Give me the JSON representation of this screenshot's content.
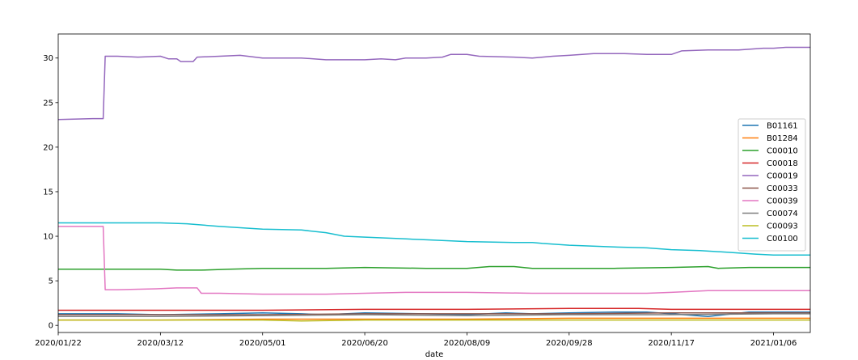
{
  "chart_data": {
    "type": "line",
    "title": "",
    "xlabel": "date",
    "ylabel": "",
    "ylim": [
      -0.8,
      32.7
    ],
    "yticks": [
      0,
      5,
      10,
      15,
      20,
      25,
      30
    ],
    "xlim": [
      "2020-01-22",
      "2021-01-24"
    ],
    "xticks": [
      "2020/01/22",
      "2020/03/12",
      "2020/05/01",
      "2020/06/20",
      "2020/08/09",
      "2020/09/28",
      "2020/11/17",
      "2021/01/06"
    ],
    "grid": false,
    "legend_position": "center-right",
    "series": [
      {
        "name": "B01161",
        "color": "#1f77b4",
        "points": [
          [
            "2020-01-22",
            1.3
          ],
          [
            "2020-02-20",
            1.3
          ],
          [
            "2020-03-12",
            1.2
          ],
          [
            "2020-04-10",
            1.3
          ],
          [
            "2020-05-01",
            1.4
          ],
          [
            "2020-05-20",
            1.3
          ],
          [
            "2020-06-01",
            1.2
          ],
          [
            "2020-06-20",
            1.4
          ],
          [
            "2020-07-20",
            1.3
          ],
          [
            "2020-08-09",
            1.2
          ],
          [
            "2020-08-28",
            1.4
          ],
          [
            "2020-09-10",
            1.3
          ],
          [
            "2020-09-28",
            1.4
          ],
          [
            "2020-10-20",
            1.5
          ],
          [
            "2020-11-05",
            1.5
          ],
          [
            "2020-11-17",
            1.3
          ],
          [
            "2020-12-05",
            1.0
          ],
          [
            "2020-12-25",
            1.5
          ],
          [
            "2021-01-06",
            1.5
          ],
          [
            "2021-01-24",
            1.5
          ]
        ]
      },
      {
        "name": "B01284",
        "color": "#ff7f0e",
        "points": [
          [
            "2020-01-22",
            0.6
          ],
          [
            "2020-03-12",
            0.6
          ],
          [
            "2020-05-01",
            0.7
          ],
          [
            "2020-06-20",
            0.7
          ],
          [
            "2020-08-09",
            0.7
          ],
          [
            "2020-09-28",
            0.8
          ],
          [
            "2020-11-17",
            0.8
          ],
          [
            "2021-01-06",
            0.8
          ],
          [
            "2021-01-24",
            0.8
          ]
        ]
      },
      {
        "name": "C00010",
        "color": "#2ca02c",
        "points": [
          [
            "2020-01-22",
            6.3
          ],
          [
            "2020-02-20",
            6.3
          ],
          [
            "2020-03-12",
            6.3
          ],
          [
            "2020-03-20",
            6.2
          ],
          [
            "2020-04-01",
            6.2
          ],
          [
            "2020-04-15",
            6.3
          ],
          [
            "2020-05-01",
            6.4
          ],
          [
            "2020-05-20",
            6.4
          ],
          [
            "2020-06-01",
            6.4
          ],
          [
            "2020-06-20",
            6.5
          ],
          [
            "2020-07-20",
            6.4
          ],
          [
            "2020-08-09",
            6.4
          ],
          [
            "2020-08-20",
            6.6
          ],
          [
            "2020-09-01",
            6.6
          ],
          [
            "2020-09-10",
            6.4
          ],
          [
            "2020-09-28",
            6.4
          ],
          [
            "2020-10-20",
            6.4
          ],
          [
            "2020-11-17",
            6.5
          ],
          [
            "2020-12-05",
            6.6
          ],
          [
            "2020-12-10",
            6.4
          ],
          [
            "2020-12-25",
            6.5
          ],
          [
            "2021-01-06",
            6.5
          ],
          [
            "2021-01-24",
            6.5
          ]
        ]
      },
      {
        "name": "C00018",
        "color": "#d62728",
        "points": [
          [
            "2020-01-22",
            1.7
          ],
          [
            "2020-03-12",
            1.7
          ],
          [
            "2020-05-01",
            1.7
          ],
          [
            "2020-06-20",
            1.8
          ],
          [
            "2020-08-09",
            1.8
          ],
          [
            "2020-09-28",
            1.9
          ],
          [
            "2020-11-01",
            1.9
          ],
          [
            "2020-11-17",
            1.8
          ],
          [
            "2021-01-06",
            1.8
          ],
          [
            "2021-01-24",
            1.8
          ]
        ]
      },
      {
        "name": "C00019",
        "color": "#9467bd",
        "points": [
          [
            "2020-01-22",
            23.1
          ],
          [
            "2020-02-08",
            23.2
          ],
          [
            "2020-02-13",
            23.2
          ],
          [
            "2020-02-14",
            30.2
          ],
          [
            "2020-02-20",
            30.2
          ],
          [
            "2020-03-01",
            30.1
          ],
          [
            "2020-03-12",
            30.2
          ],
          [
            "2020-03-16",
            29.9
          ],
          [
            "2020-03-20",
            29.9
          ],
          [
            "2020-03-22",
            29.6
          ],
          [
            "2020-03-28",
            29.6
          ],
          [
            "2020-03-30",
            30.1
          ],
          [
            "2020-04-10",
            30.2
          ],
          [
            "2020-04-20",
            30.3
          ],
          [
            "2020-05-01",
            30.0
          ],
          [
            "2020-05-20",
            30.0
          ],
          [
            "2020-06-01",
            29.8
          ],
          [
            "2020-06-20",
            29.8
          ],
          [
            "2020-06-28",
            29.9
          ],
          [
            "2020-07-05",
            29.8
          ],
          [
            "2020-07-10",
            30.0
          ],
          [
            "2020-07-20",
            30.0
          ],
          [
            "2020-07-28",
            30.1
          ],
          [
            "2020-08-01",
            30.4
          ],
          [
            "2020-08-09",
            30.4
          ],
          [
            "2020-08-15",
            30.2
          ],
          [
            "2020-09-01",
            30.1
          ],
          [
            "2020-09-10",
            30.0
          ],
          [
            "2020-09-20",
            30.2
          ],
          [
            "2020-09-28",
            30.3
          ],
          [
            "2020-10-10",
            30.5
          ],
          [
            "2020-10-25",
            30.5
          ],
          [
            "2020-11-05",
            30.4
          ],
          [
            "2020-11-10",
            30.4
          ],
          [
            "2020-11-17",
            30.4
          ],
          [
            "2020-11-22",
            30.8
          ],
          [
            "2020-12-05",
            30.9
          ],
          [
            "2020-12-20",
            30.9
          ],
          [
            "2021-01-01",
            31.1
          ],
          [
            "2021-01-06",
            31.1
          ],
          [
            "2021-01-12",
            31.2
          ],
          [
            "2021-01-24",
            31.2
          ]
        ]
      },
      {
        "name": "C00033",
        "color": "#8c564b",
        "points": [
          [
            "2020-01-22",
            1.2
          ],
          [
            "2020-03-12",
            1.2
          ],
          [
            "2020-05-01",
            1.2
          ],
          [
            "2020-06-20",
            1.3
          ],
          [
            "2020-08-09",
            1.3
          ],
          [
            "2020-09-28",
            1.3
          ],
          [
            "2020-11-17",
            1.4
          ],
          [
            "2021-01-06",
            1.4
          ],
          [
            "2021-01-24",
            1.4
          ]
        ]
      },
      {
        "name": "C00039",
        "color": "#e377c2",
        "points": [
          [
            "2020-01-22",
            11.1
          ],
          [
            "2020-02-08",
            11.1
          ],
          [
            "2020-02-13",
            11.1
          ],
          [
            "2020-02-14",
            4.0
          ],
          [
            "2020-02-20",
            4.0
          ],
          [
            "2020-03-10",
            4.1
          ],
          [
            "2020-03-20",
            4.2
          ],
          [
            "2020-03-30",
            4.2
          ],
          [
            "2020-04-01",
            3.6
          ],
          [
            "2020-04-10",
            3.6
          ],
          [
            "2020-05-01",
            3.5
          ],
          [
            "2020-05-20",
            3.5
          ],
          [
            "2020-06-01",
            3.5
          ],
          [
            "2020-06-20",
            3.6
          ],
          [
            "2020-07-10",
            3.7
          ],
          [
            "2020-07-20",
            3.7
          ],
          [
            "2020-08-09",
            3.7
          ],
          [
            "2020-09-10",
            3.6
          ],
          [
            "2020-09-28",
            3.6
          ],
          [
            "2020-10-20",
            3.6
          ],
          [
            "2020-11-05",
            3.6
          ],
          [
            "2020-11-17",
            3.7
          ],
          [
            "2020-12-05",
            3.9
          ],
          [
            "2020-12-20",
            3.9
          ],
          [
            "2021-01-06",
            3.9
          ],
          [
            "2021-01-24",
            3.9
          ]
        ]
      },
      {
        "name": "C00074",
        "color": "#7f7f7f",
        "points": [
          [
            "2020-01-22",
            1.0
          ],
          [
            "2020-03-12",
            1.0
          ],
          [
            "2020-05-01",
            1.1
          ],
          [
            "2020-06-20",
            1.2
          ],
          [
            "2020-08-09",
            1.1
          ],
          [
            "2020-09-28",
            1.2
          ],
          [
            "2020-11-17",
            1.2
          ],
          [
            "2021-01-06",
            1.3
          ],
          [
            "2021-01-24",
            1.3
          ]
        ]
      },
      {
        "name": "C00093",
        "color": "#bcbd22",
        "points": [
          [
            "2020-01-22",
            0.6
          ],
          [
            "2020-03-12",
            0.6
          ],
          [
            "2020-04-01",
            0.6
          ],
          [
            "2020-05-01",
            0.6
          ],
          [
            "2020-05-20",
            0.5
          ],
          [
            "2020-06-20",
            0.6
          ],
          [
            "2020-08-09",
            0.6
          ],
          [
            "2020-09-28",
            0.6
          ],
          [
            "2020-11-17",
            0.6
          ],
          [
            "2021-01-06",
            0.6
          ],
          [
            "2021-01-24",
            0.6
          ]
        ]
      },
      {
        "name": "C00100",
        "color": "#17becf",
        "points": [
          [
            "2020-01-22",
            11.5
          ],
          [
            "2020-02-20",
            11.5
          ],
          [
            "2020-03-12",
            11.5
          ],
          [
            "2020-03-25",
            11.4
          ],
          [
            "2020-04-10",
            11.1
          ],
          [
            "2020-05-01",
            10.8
          ],
          [
            "2020-05-20",
            10.7
          ],
          [
            "2020-06-01",
            10.4
          ],
          [
            "2020-06-10",
            10.0
          ],
          [
            "2020-06-20",
            9.9
          ],
          [
            "2020-07-10",
            9.7
          ],
          [
            "2020-07-20",
            9.6
          ],
          [
            "2020-08-09",
            9.4
          ],
          [
            "2020-09-01",
            9.3
          ],
          [
            "2020-09-10",
            9.3
          ],
          [
            "2020-09-15",
            9.2
          ],
          [
            "2020-09-28",
            9.0
          ],
          [
            "2020-10-20",
            8.8
          ],
          [
            "2020-11-05",
            8.7
          ],
          [
            "2020-11-17",
            8.5
          ],
          [
            "2020-12-01",
            8.4
          ],
          [
            "2020-12-15",
            8.2
          ],
          [
            "2020-12-28",
            8.0
          ],
          [
            "2021-01-06",
            7.9
          ],
          [
            "2021-01-24",
            7.9
          ]
        ]
      }
    ]
  }
}
